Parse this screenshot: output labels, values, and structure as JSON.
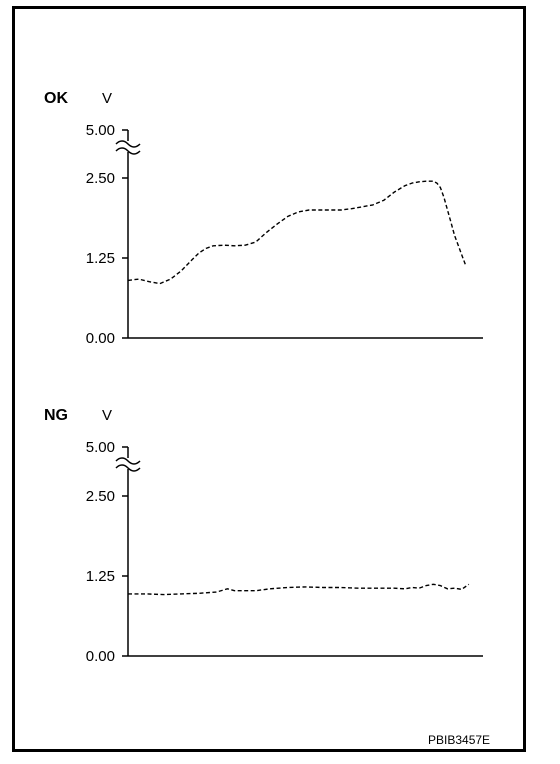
{
  "figure_id": "PBIB3457E",
  "chart_data": [
    {
      "type": "line",
      "title": "OK",
      "ylabel": "V",
      "ylim": [
        0,
        5.0
      ],
      "axis_break_between": [
        2.5,
        5.0
      ],
      "y_ticks": [
        "0.00",
        "1.25",
        "2.50",
        "5.00"
      ],
      "x_unlabeled": true,
      "line_style": "dashed",
      "series": [
        {
          "x": [
            0,
            0.03,
            0.06,
            0.09,
            0.12,
            0.15,
            0.18,
            0.2,
            0.22,
            0.24,
            0.27,
            0.3,
            0.33,
            0.36,
            0.39,
            0.42,
            0.45,
            0.48,
            0.51,
            0.54,
            0.57,
            0.6,
            0.63,
            0.66,
            0.69,
            0.72,
            0.75,
            0.78,
            0.8,
            0.82,
            0.84,
            0.86,
            0.87,
            0.88,
            0.89,
            0.9,
            0.91,
            0.92,
            0.93,
            0.94,
            0.95
          ],
          "values": [
            0.9,
            0.92,
            0.88,
            0.85,
            0.92,
            1.05,
            1.22,
            1.33,
            1.4,
            1.44,
            1.45,
            1.44,
            1.45,
            1.5,
            1.65,
            1.78,
            1.9,
            1.97,
            2.0,
            2.0,
            2.0,
            2.0,
            2.02,
            2.05,
            2.08,
            2.15,
            2.28,
            2.38,
            2.42,
            2.44,
            2.45,
            2.45,
            2.42,
            2.35,
            2.2,
            2.0,
            1.8,
            1.6,
            1.45,
            1.3,
            1.15
          ]
        }
      ]
    },
    {
      "type": "line",
      "title": "NG",
      "ylabel": "V",
      "ylim": [
        0,
        5.0
      ],
      "axis_break_between": [
        2.5,
        5.0
      ],
      "y_ticks": [
        "0.00",
        "1.25",
        "2.50",
        "5.00"
      ],
      "x_unlabeled": true,
      "line_style": "dashed",
      "series": [
        {
          "x": [
            0,
            0.05,
            0.1,
            0.15,
            0.2,
            0.25,
            0.28,
            0.3,
            0.33,
            0.36,
            0.4,
            0.45,
            0.5,
            0.55,
            0.6,
            0.65,
            0.7,
            0.75,
            0.78,
            0.8,
            0.82,
            0.84,
            0.86,
            0.88,
            0.9,
            0.92,
            0.94,
            0.96
          ],
          "values": [
            0.97,
            0.97,
            0.96,
            0.97,
            0.98,
            1.0,
            1.05,
            1.02,
            1.02,
            1.02,
            1.05,
            1.07,
            1.08,
            1.07,
            1.07,
            1.06,
            1.06,
            1.06,
            1.05,
            1.07,
            1.06,
            1.1,
            1.12,
            1.1,
            1.05,
            1.06,
            1.04,
            1.12
          ]
        }
      ]
    }
  ]
}
